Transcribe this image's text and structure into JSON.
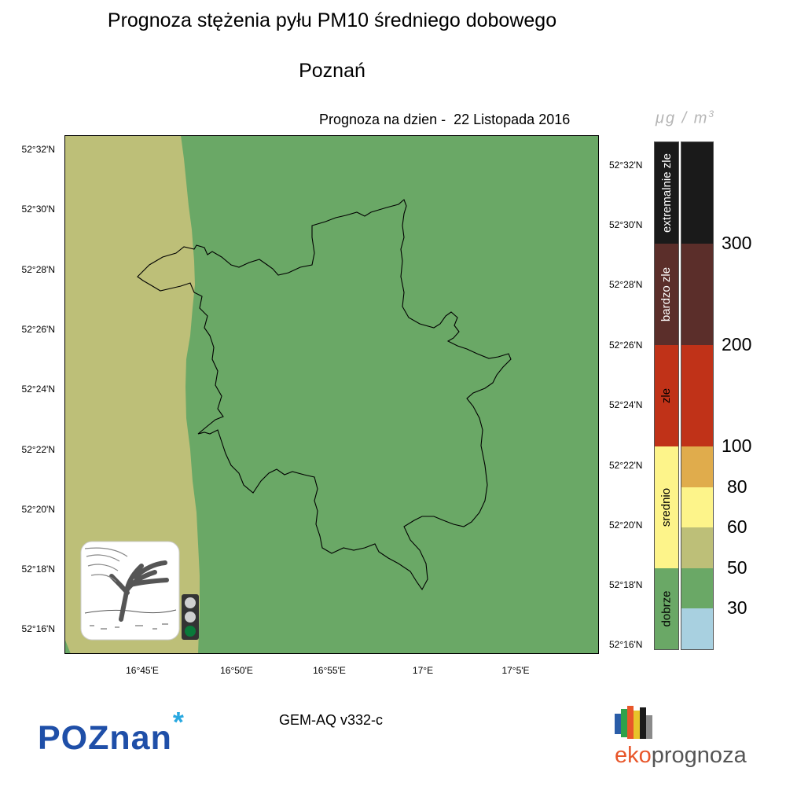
{
  "title": "Prognoza stężenia pyłu PM10 średniego dobowego",
  "subtitle": "Poznań",
  "forecast_label": "Prognoza na dzien -  22 Listopada 2016",
  "unit": "μg / m",
  "unit_exp": "3",
  "lat_ticks": [
    "52°32'N",
    "52°30'N",
    "52°28'N",
    "52°26'N",
    "52°24'N",
    "52°22'N",
    "52°20'N",
    "52°18'N",
    "52°16'N"
  ],
  "lon_ticks": [
    "16°45'E",
    "16°50'E",
    "16°55'E",
    "17°E",
    "17°5'E"
  ],
  "model_label": "GEM-AQ v332-c",
  "scale": {
    "categories": [
      {
        "label": "extremalnie zle",
        "color": "#1a1a1a",
        "text_color": "#ffffff"
      },
      {
        "label": "bardzo zle",
        "color": "#5b2e2a",
        "text_color": "#ffffff"
      },
      {
        "label": "zle",
        "color": "#c03218",
        "text_color": "#000000"
      },
      {
        "label": "srednio",
        "color": "#fdf48a",
        "text_color": "#000000"
      },
      {
        "label": "dobrze",
        "color": "#6aa866",
        "text_color": "#000000"
      }
    ],
    "bins": [
      {
        "color": "#1a1a1a"
      },
      {
        "color": "#5b2e2a"
      },
      {
        "color": "#c03218"
      },
      {
        "color": "#e0ac4c"
      },
      {
        "color": "#fdf48a"
      },
      {
        "color": "#bdbf78"
      },
      {
        "color": "#6aa866"
      },
      {
        "color": "#a8d0e0"
      }
    ],
    "thresholds": [
      "300",
      "200",
      "100",
      "80",
      "60",
      "50",
      "30"
    ]
  },
  "map": {
    "colors": {
      "low": "#6aa866",
      "mid": "#bdbf78",
      "border": "#000000"
    }
  },
  "traffic_light": {
    "active": "green"
  },
  "logos": {
    "city": "POZnan",
    "city_star": "*",
    "eko_a": "eko",
    "eko_b": "prognoza"
  }
}
